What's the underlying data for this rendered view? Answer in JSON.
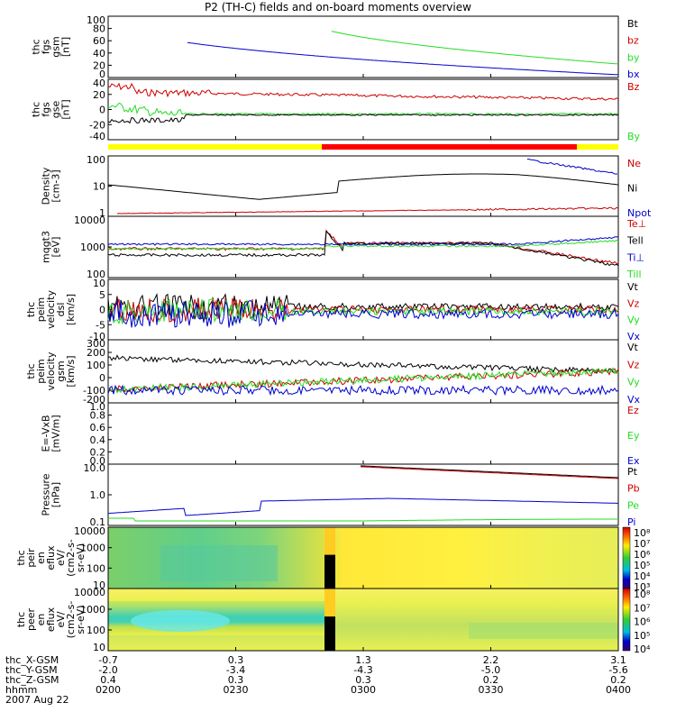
{
  "title": "P2 (TH-C) fields and on-board moments overview",
  "colors": {
    "black": "#000000",
    "red": "#cc0000",
    "green": "#22dd22",
    "blue": "#0000cc",
    "yellow": "#ffff00",
    "barred": "#ff0000"
  },
  "chart_data": {
    "type": "line",
    "x_ticks": [
      "0200",
      "0230",
      "0300",
      "0330",
      "0400"
    ],
    "panels": [
      {
        "id": "fgs-gsm",
        "ylabel": [
          "thc",
          "fgs",
          "gsm",
          "[nT]"
        ],
        "yticks": [
          "100",
          "80",
          "60",
          "40",
          "20",
          "0"
        ],
        "legend": [
          {
            "text": "Bt",
            "color": "black"
          },
          {
            "text": "bz",
            "color": "red"
          },
          {
            "text": "by",
            "color": "green"
          },
          {
            "text": "bx",
            "color": "blue"
          }
        ]
      },
      {
        "id": "fgs-gse",
        "ylabel": [
          "thc",
          "fgs",
          "gse",
          "[nT]"
        ],
        "yticks": [
          "40",
          "20",
          "0",
          "-20",
          "-40"
        ],
        "legend": [
          {
            "text": "Bz",
            "color": "red"
          },
          {
            "text": "By",
            "color": "green"
          }
        ]
      },
      {
        "id": "density",
        "ylabel": [
          "Density",
          "[cm-3]"
        ],
        "yticks": [
          "100",
          "10",
          "1"
        ],
        "legend": [
          {
            "text": "Ne",
            "color": "red"
          },
          {
            "text": "Ni",
            "color": "black"
          },
          {
            "text": "Npot",
            "color": "blue"
          }
        ]
      },
      {
        "id": "temp",
        "ylabel": [
          "mqgt3",
          "[eV]"
        ],
        "yticks": [
          "10000",
          "1000",
          "100"
        ],
        "legend": [
          {
            "text": "Te⊥",
            "color": "red"
          },
          {
            "text": "Tell",
            "color": "black"
          },
          {
            "text": "Ti⊥",
            "color": "blue"
          },
          {
            "text": "Till",
            "color": "green"
          }
        ]
      },
      {
        "id": "vel-dsl",
        "ylabel": [
          "thc",
          "peim",
          "velocity",
          "dsl",
          "[km/s]"
        ],
        "yticks": [
          "10",
          "5",
          "0",
          "-5",
          "-10"
        ],
        "legend": [
          {
            "text": "Vt",
            "color": "black"
          },
          {
            "text": "Vz",
            "color": "red"
          },
          {
            "text": "Vy",
            "color": "green"
          },
          {
            "text": "Vx",
            "color": "blue"
          }
        ]
      },
      {
        "id": "vel-gsm",
        "ylabel": [
          "thc",
          "peim",
          "velocity",
          "gsm",
          "[km/s]"
        ],
        "yticks": [
          "300",
          "200",
          "100",
          "0",
          "-100",
          "-200"
        ],
        "legend": [
          {
            "text": "Vt",
            "color": "black"
          },
          {
            "text": "Vz",
            "color": "red"
          },
          {
            "text": "Vy",
            "color": "green"
          },
          {
            "text": "Vx",
            "color": "blue"
          }
        ]
      },
      {
        "id": "efield",
        "ylabel": [
          "E=-VxB",
          "[mV/m]"
        ],
        "yticks": [
          "1.0",
          "0.8",
          "0.6",
          "0.4",
          "0.2",
          "0.0"
        ],
        "legend": [
          {
            "text": "Ez",
            "color": "red"
          },
          {
            "text": "Ey",
            "color": "green"
          },
          {
            "text": "Ex",
            "color": "blue"
          }
        ]
      },
      {
        "id": "pressure",
        "ylabel": [
          "Pressure",
          "[nPa]"
        ],
        "yticks": [
          "10.0",
          "1.0",
          "0.1"
        ],
        "legend": [
          {
            "text": "Pt",
            "color": "black"
          },
          {
            "text": "Pb",
            "color": "red"
          },
          {
            "text": "Pe",
            "color": "green"
          },
          {
            "text": "Pi",
            "color": "blue"
          }
        ]
      },
      {
        "id": "peir",
        "ylabel": [
          "thc",
          "peir",
          "en",
          "eflux",
          "eV/",
          "(cm2-s-",
          "sr-eV)"
        ],
        "yticks": [
          "10000",
          "1000",
          "100",
          "10"
        ],
        "colorbar": [
          "10⁸",
          "10⁷",
          "10⁶",
          "10⁵",
          "10⁴",
          "10³"
        ]
      },
      {
        "id": "peer",
        "ylabel": [
          "thc",
          "peer",
          "en",
          "eflux",
          "eV/",
          "(cm2-s-",
          "sr-eV)"
        ],
        "yticks": [
          "10000",
          "1000",
          "100",
          "10"
        ],
        "colorbar": [
          "10⁸",
          "10⁷",
          "10⁶",
          "10⁵",
          "10⁴"
        ]
      }
    ],
    "ephemeris": [
      {
        "label": "thc_X-GSM",
        "values": [
          "-0.7",
          "0.3",
          "1.3",
          "2.2",
          "3.1"
        ]
      },
      {
        "label": "thc_Y-GSM",
        "values": [
          "-2.0",
          "-3.4",
          "-4.3",
          "-5.0",
          "-5.6"
        ]
      },
      {
        "label": "thc_Z-GSM",
        "values": [
          "0.4",
          "0.3",
          "0.3",
          "0.2",
          "0.2"
        ]
      },
      {
        "label": "hhmm",
        "values": [
          "0200",
          "0230",
          "0300",
          "0330",
          "0400"
        ]
      }
    ],
    "date": "2007 Aug 22"
  }
}
